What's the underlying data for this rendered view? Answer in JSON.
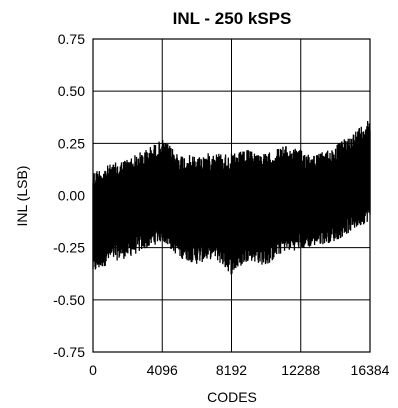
{
  "chart_data": {
    "type": "line",
    "title": "INL - 250 kSPS",
    "xlabel": "CODES",
    "ylabel": "INL (LSB)",
    "xlim": [
      0,
      16384
    ],
    "ylim": [
      -0.75,
      0.75
    ],
    "x_ticks": [
      0,
      4096,
      8192,
      12288,
      16384
    ],
    "x_tick_labels": [
      "0",
      "4096",
      "8192",
      "12288",
      "16384"
    ],
    "y_ticks": [
      0.75,
      0.5,
      0.25,
      0.0,
      -0.25,
      -0.5,
      -0.75
    ],
    "y_tick_labels": [
      "0.75",
      "0.50",
      "0.25",
      "0.00",
      "-0.25",
      "-0.50",
      "-0.75"
    ],
    "grid": true,
    "series_color": "#000000",
    "envelope": {
      "x": [
        0,
        1024,
        2048,
        3072,
        4096,
        5120,
        6144,
        7168,
        8192,
        9216,
        10240,
        11264,
        12288,
        13312,
        14336,
        15360,
        16384
      ],
      "upper": [
        0.12,
        0.15,
        0.18,
        0.22,
        0.27,
        0.2,
        0.19,
        0.21,
        0.2,
        0.22,
        0.2,
        0.24,
        0.22,
        0.2,
        0.24,
        0.3,
        0.38
      ],
      "lower": [
        -0.38,
        -0.32,
        -0.3,
        -0.26,
        -0.22,
        -0.3,
        -0.33,
        -0.3,
        -0.38,
        -0.31,
        -0.34,
        -0.27,
        -0.26,
        -0.24,
        -0.22,
        -0.17,
        -0.12
      ]
    }
  }
}
